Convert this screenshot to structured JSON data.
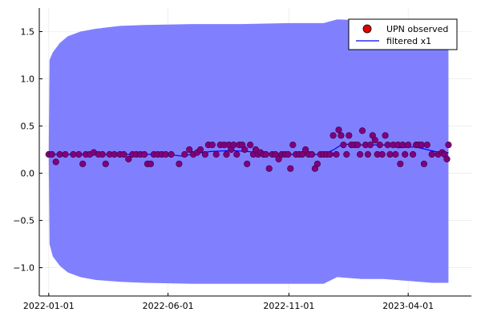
{
  "chart_data": {
    "type": "line",
    "title": "",
    "xlabel": "",
    "ylabel": "",
    "x_axis": {
      "type": "date",
      "range": [
        "2021-12-20",
        "2023-06-20"
      ],
      "ticks": [
        "2022-01-01",
        "2022-06-01",
        "2022-11-01",
        "2023-04-01"
      ]
    },
    "y_axis": {
      "range": [
        -1.3,
        1.75
      ],
      "ticks": [
        -1.0,
        -0.5,
        0.0,
        0.5,
        1.0,
        1.5
      ],
      "tick_labels": [
        "−1.0",
        "−0.5",
        "0.0",
        "0.5",
        "1.0",
        "1.5"
      ]
    },
    "grid": true,
    "legend_position": "top-right",
    "colors": {
      "band": "#8080ff",
      "filtered_line": "#0000ff",
      "observed_fill": "#800080",
      "observed_stroke": "#3a003a",
      "legend_marker": "#e00000"
    },
    "legend": [
      {
        "label": "UPN observed",
        "kind": "marker"
      },
      {
        "label": "filtered x1",
        "kind": "line"
      }
    ],
    "series": [
      {
        "name": "UPN observed",
        "kind": "scatter",
        "points": [
          [
            "2022-01-01",
            0.2
          ],
          [
            "2022-01-05",
            0.2
          ],
          [
            "2022-01-10",
            0.12
          ],
          [
            "2022-01-15",
            0.2
          ],
          [
            "2022-01-22",
            0.2
          ],
          [
            "2022-02-01",
            0.2
          ],
          [
            "2022-02-08",
            0.2
          ],
          [
            "2022-02-13",
            0.1
          ],
          [
            "2022-02-17",
            0.2
          ],
          [
            "2022-02-22",
            0.2
          ],
          [
            "2022-02-27",
            0.22
          ],
          [
            "2022-03-05",
            0.2
          ],
          [
            "2022-03-10",
            0.2
          ],
          [
            "2022-03-14",
            0.1
          ],
          [
            "2022-03-19",
            0.2
          ],
          [
            "2022-03-25",
            0.2
          ],
          [
            "2022-04-01",
            0.2
          ],
          [
            "2022-04-06",
            0.2
          ],
          [
            "2022-04-12",
            0.15
          ],
          [
            "2022-04-17",
            0.2
          ],
          [
            "2022-04-22",
            0.2
          ],
          [
            "2022-04-27",
            0.2
          ],
          [
            "2022-05-02",
            0.2
          ],
          [
            "2022-05-06",
            0.1
          ],
          [
            "2022-05-10",
            0.1
          ],
          [
            "2022-05-14",
            0.2
          ],
          [
            "2022-05-19",
            0.2
          ],
          [
            "2022-05-24",
            0.2
          ],
          [
            "2022-05-29",
            0.2
          ],
          [
            "2022-06-05",
            0.2
          ],
          [
            "2022-06-15",
            0.1
          ],
          [
            "2022-06-22",
            0.2
          ],
          [
            "2022-06-28",
            0.25
          ],
          [
            "2022-07-03",
            0.2
          ],
          [
            "2022-07-08",
            0.22
          ],
          [
            "2022-07-12",
            0.25
          ],
          [
            "2022-07-18",
            0.2
          ],
          [
            "2022-07-22",
            0.3
          ],
          [
            "2022-07-27",
            0.3
          ],
          [
            "2022-08-01",
            0.2
          ],
          [
            "2022-08-06",
            0.3
          ],
          [
            "2022-08-11",
            0.3
          ],
          [
            "2022-08-14",
            0.2
          ],
          [
            "2022-08-17",
            0.3
          ],
          [
            "2022-08-20",
            0.25
          ],
          [
            "2022-08-23",
            0.3
          ],
          [
            "2022-08-27",
            0.2
          ],
          [
            "2022-08-30",
            0.3
          ],
          [
            "2022-09-03",
            0.3
          ],
          [
            "2022-09-06",
            0.25
          ],
          [
            "2022-09-09",
            0.1
          ],
          [
            "2022-09-13",
            0.3
          ],
          [
            "2022-09-17",
            0.2
          ],
          [
            "2022-09-20",
            0.25
          ],
          [
            "2022-09-23",
            0.2
          ],
          [
            "2022-09-26",
            0.22
          ],
          [
            "2022-09-30",
            0.2
          ],
          [
            "2022-10-03",
            0.2
          ],
          [
            "2022-10-07",
            0.05
          ],
          [
            "2022-10-11",
            0.2
          ],
          [
            "2022-10-15",
            0.2
          ],
          [
            "2022-10-19",
            0.15
          ],
          [
            "2022-10-23",
            0.2
          ],
          [
            "2022-10-27",
            0.2
          ],
          [
            "2022-10-31",
            0.2
          ],
          [
            "2022-11-03",
            0.05
          ],
          [
            "2022-11-06",
            0.3
          ],
          [
            "2022-11-10",
            0.2
          ],
          [
            "2022-11-14",
            0.2
          ],
          [
            "2022-11-18",
            0.2
          ],
          [
            "2022-11-22",
            0.25
          ],
          [
            "2022-11-26",
            0.2
          ],
          [
            "2022-11-30",
            0.2
          ],
          [
            "2022-12-04",
            0.05
          ],
          [
            "2022-12-07",
            0.1
          ],
          [
            "2022-12-11",
            0.2
          ],
          [
            "2022-12-15",
            0.2
          ],
          [
            "2022-12-19",
            0.2
          ],
          [
            "2022-12-23",
            0.2
          ],
          [
            "2022-12-27",
            0.4
          ],
          [
            "2022-12-31",
            0.2
          ],
          [
            "2023-01-03",
            0.46
          ],
          [
            "2023-01-06",
            0.4
          ],
          [
            "2023-01-09",
            0.3
          ],
          [
            "2023-01-13",
            0.2
          ],
          [
            "2023-01-16",
            0.4
          ],
          [
            "2023-01-19",
            0.3
          ],
          [
            "2023-01-23",
            0.3
          ],
          [
            "2023-01-27",
            0.3
          ],
          [
            "2023-01-30",
            0.2
          ],
          [
            "2023-02-02",
            0.45
          ],
          [
            "2023-02-06",
            0.3
          ],
          [
            "2023-02-09",
            0.2
          ],
          [
            "2023-02-12",
            0.3
          ],
          [
            "2023-02-15",
            0.4
          ],
          [
            "2023-02-18",
            0.35
          ],
          [
            "2023-02-21",
            0.2
          ],
          [
            "2023-02-24",
            0.3
          ],
          [
            "2023-02-27",
            0.2
          ],
          [
            "2023-03-03",
            0.4
          ],
          [
            "2023-03-06",
            0.3
          ],
          [
            "2023-03-09",
            0.2
          ],
          [
            "2023-03-13",
            0.3
          ],
          [
            "2023-03-16",
            0.2
          ],
          [
            "2023-03-19",
            0.3
          ],
          [
            "2023-03-22",
            0.1
          ],
          [
            "2023-03-25",
            0.3
          ],
          [
            "2023-03-28",
            0.2
          ],
          [
            "2023-04-01",
            0.3
          ],
          [
            "2023-04-07",
            0.2
          ],
          [
            "2023-04-11",
            0.3
          ],
          [
            "2023-04-14",
            0.3
          ],
          [
            "2023-04-18",
            0.3
          ],
          [
            "2023-04-21",
            0.1
          ],
          [
            "2023-04-25",
            0.3
          ],
          [
            "2023-05-01",
            0.2
          ],
          [
            "2023-05-09",
            0.2
          ],
          [
            "2023-05-14",
            0.22
          ],
          [
            "2023-05-17",
            0.2
          ],
          [
            "2023-05-20",
            0.15
          ],
          [
            "2023-05-22",
            0.3
          ]
        ]
      },
      {
        "name": "filtered x1",
        "kind": "line",
        "points": [
          [
            "2022-01-01",
            0.2
          ],
          [
            "2022-03-01",
            0.2
          ],
          [
            "2022-06-01",
            0.2
          ],
          [
            "2022-06-20",
            0.18
          ],
          [
            "2022-07-05",
            0.21
          ],
          [
            "2022-07-25",
            0.23
          ],
          [
            "2022-08-20",
            0.24
          ],
          [
            "2022-09-10",
            0.23
          ],
          [
            "2022-09-30",
            0.21
          ],
          [
            "2022-10-20",
            0.2
          ],
          [
            "2022-11-20",
            0.2
          ],
          [
            "2022-12-15",
            0.2
          ],
          [
            "2022-12-28",
            0.25
          ],
          [
            "2023-01-08",
            0.31
          ],
          [
            "2023-02-01",
            0.3
          ],
          [
            "2023-03-01",
            0.3
          ],
          [
            "2023-03-20",
            0.27
          ],
          [
            "2023-04-10",
            0.28
          ],
          [
            "2023-04-25",
            0.25
          ],
          [
            "2023-05-10",
            0.22
          ],
          [
            "2023-05-22",
            0.22
          ]
        ]
      },
      {
        "name": "",
        "kind": "band",
        "points": [
          [
            "2022-01-01",
            0.25,
            0.15
          ],
          [
            "2022-01-02",
            1.2,
            -0.75
          ],
          [
            "2022-01-06",
            1.28,
            -0.88
          ],
          [
            "2022-01-15",
            1.38,
            -0.98
          ],
          [
            "2022-01-25",
            1.45,
            -1.05
          ],
          [
            "2022-02-10",
            1.5,
            -1.1
          ],
          [
            "2022-03-01",
            1.53,
            -1.13
          ],
          [
            "2022-04-01",
            1.56,
            -1.15
          ],
          [
            "2022-05-01",
            1.57,
            -1.16
          ],
          [
            "2022-07-01",
            1.58,
            -1.17
          ],
          [
            "2022-09-01",
            1.58,
            -1.17
          ],
          [
            "2022-11-01",
            1.59,
            -1.17
          ],
          [
            "2022-12-15",
            1.59,
            -1.17
          ],
          [
            "2023-01-01",
            1.63,
            -1.1
          ],
          [
            "2023-02-01",
            1.62,
            -1.12
          ],
          [
            "2023-03-01",
            1.62,
            -1.12
          ],
          [
            "2023-04-01",
            1.6,
            -1.14
          ],
          [
            "2023-05-01",
            1.59,
            -1.16
          ],
          [
            "2023-05-22",
            1.58,
            -1.16
          ]
        ]
      }
    ]
  }
}
